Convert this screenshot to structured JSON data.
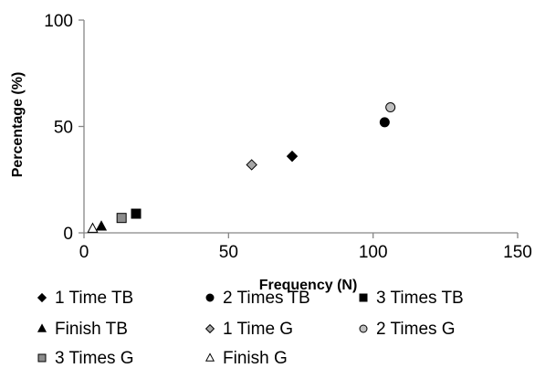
{
  "chart_data": {
    "type": "scatter",
    "title": "",
    "xlabel": "Frequency (N)",
    "ylabel": "Percentage  (%)",
    "xlim": [
      0,
      150
    ],
    "ylim": [
      0,
      100
    ],
    "xticks": [
      0,
      50,
      100,
      150
    ],
    "yticks": [
      0,
      50,
      100
    ],
    "grid": false,
    "legend_position": "bottom",
    "series": [
      {
        "name": "1 Time TB",
        "marker": "diamond",
        "color": "#000000",
        "points": [
          [
            72,
            36
          ]
        ]
      },
      {
        "name": "2 Times TB",
        "marker": "circle",
        "color": "#000000",
        "points": [
          [
            104,
            52
          ]
        ]
      },
      {
        "name": "3 Times TB",
        "marker": "square",
        "color": "#000000",
        "points": [
          [
            18,
            9
          ]
        ]
      },
      {
        "name": "Finish TB",
        "marker": "triangle",
        "color": "#000000",
        "points": [
          [
            6,
            3
          ]
        ]
      },
      {
        "name": "1 Time G",
        "marker": "diamond",
        "color": "#a6a6a6",
        "points": [
          [
            58,
            32
          ]
        ]
      },
      {
        "name": "2 Times G",
        "marker": "circle",
        "color": "#bfbfbf",
        "points": [
          [
            106,
            59
          ]
        ]
      },
      {
        "name": "3 Times G",
        "marker": "square",
        "color": "#8c8c8c",
        "points": [
          [
            13,
            7
          ]
        ]
      },
      {
        "name": "Finish G",
        "marker": "triangle",
        "color": "#ffffff",
        "points": [
          [
            3,
            2
          ]
        ]
      }
    ]
  }
}
